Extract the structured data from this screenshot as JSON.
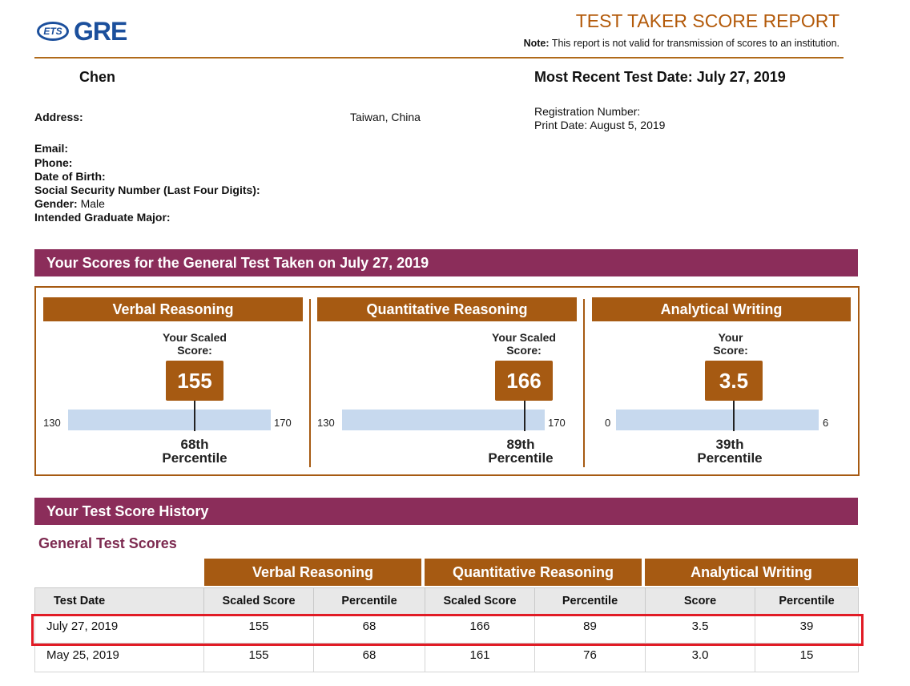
{
  "header": {
    "logo_ets": "ETS",
    "logo_gre": "GRE",
    "title": "TEST TAKER SCORE REPORT",
    "note_label": "Note:",
    "note_text": "This report is not valid for transmission of scores to an institution."
  },
  "candidate": {
    "name": "Chen",
    "most_recent": "Most Recent Test Date: July 27, 2019",
    "address_label": "Address:",
    "address_value": "Taiwan, China",
    "registration": "Registration Number:",
    "print_date": "Print Date: August 5, 2019",
    "email_label": "Email:",
    "phone_label": "Phone:",
    "dob_label": "Date of Birth:",
    "ssn_label": "Social Security Number (Last Four Digits):",
    "gender_label": "Gender:",
    "gender_value": "Male",
    "major_label": "Intended Graduate Major:"
  },
  "scores_section": {
    "title": "Your Scores for the General Test Taken on July 27, 2019",
    "measures": [
      {
        "name": "Verbal Reasoning",
        "caption1": "Your Scaled",
        "caption2": "Score:",
        "score": "155",
        "min": "130",
        "max": "170",
        "position": 0.625,
        "pct1": "68th",
        "pct2": "Percentile"
      },
      {
        "name": "Quantitative Reasoning",
        "caption1": "Your Scaled",
        "caption2": "Score:",
        "score": "166",
        "min": "130",
        "max": "170",
        "position": 0.9,
        "pct1": "89th",
        "pct2": "Percentile"
      },
      {
        "name": "Analytical Writing",
        "caption1": "Your",
        "caption2": "Score:",
        "score": "3.5",
        "min": "0",
        "max": "6",
        "position": 0.583,
        "pct1": "39th",
        "pct2": "Percentile"
      }
    ]
  },
  "history": {
    "title": "Your Test Score History",
    "subtitle": "General Test Scores",
    "groups": [
      "Verbal Reasoning",
      "Quantitative Reasoning",
      "Analytical Writing"
    ],
    "columns": [
      "Test Date",
      "Scaled Score",
      "Percentile",
      "Scaled Score",
      "Percentile",
      "Score",
      "Percentile"
    ],
    "rows": [
      [
        "July 27, 2019",
        "155",
        "68",
        "166",
        "89",
        "3.5",
        "39"
      ],
      [
        "May 25, 2019",
        "155",
        "68",
        "161",
        "76",
        "3.0",
        "15"
      ]
    ]
  },
  "colors": {
    "brand_blue": "#1b4f9c",
    "section_purple": "#8b2d5a",
    "accent_brown": "#a65a12",
    "highlight_red": "#e11b25"
  }
}
